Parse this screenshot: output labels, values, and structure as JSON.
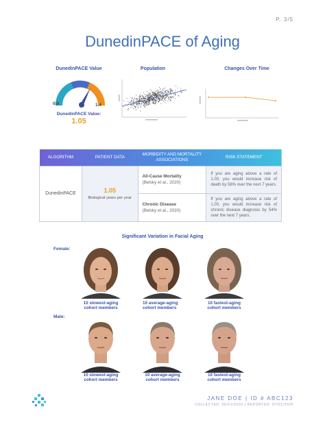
{
  "page_number": "P. 3/5",
  "title": "DunedinPACE of Aging",
  "gauge": {
    "title": "DunedinPACE Value",
    "min_label": "0.6",
    "max_label": "1.4",
    "value_label": "DunedinPACE Value:",
    "value": "1.05",
    "value_fraction": 0.56,
    "colors": {
      "low": "#2aa7c3",
      "mid": "#4a6bc5",
      "high": "#f0901f",
      "needle": "#3a4a9a"
    }
  },
  "population": {
    "title": "Population"
  },
  "changes": {
    "title": "Changes Over Time"
  },
  "table": {
    "headers": {
      "algorithm": "ALGORITHM",
      "patient": "PATIENT DATA",
      "morbidity": "MORBIDITY AND MORTALITY ASSOCIATIONS",
      "risk": "RISK STATEMENT"
    },
    "algorithm": "DunedinPACE",
    "patient_value": "1.05",
    "patient_unit": "Biological years per year",
    "rows": [
      {
        "name": "All-Cause Mortality",
        "ref": "(Belsky et al., 2020)",
        "risk": "If you are aging above a rate of 1.00, you would increase risk of death by 56% over the next 7 years."
      },
      {
        "name": "Chronic Disease",
        "ref": "(Belsky et al., 2020)",
        "risk": "If you are aging above a rate of 1.00, you would increase risk of chronic disease diagnosis by 54% over the next 7 years."
      }
    ]
  },
  "faces": {
    "title": "Significant Variation in Facial Aging",
    "female_label": "Female:",
    "male_label": "Male:",
    "female": [
      {
        "line1": "10 slowest-aging",
        "line2": "cohort members"
      },
      {
        "line1": "10 average-aging",
        "line2": "cohort members"
      },
      {
        "line1": "10 fastest-aging",
        "line2": "cohort members"
      }
    ],
    "male": [
      {
        "line1": "10 slowest-aging",
        "line2": "cohort members"
      },
      {
        "line1": "10 average-aging",
        "line2": "cohort members"
      },
      {
        "line1": "10 fastest-aging",
        "line2": "cohort members"
      }
    ]
  },
  "footer": {
    "name_line": "JANE DOE  |  ID # ABC123",
    "dates_line": "COLLECTED: 06/01/2020  |  REPORTED: 07/01/2020"
  }
}
